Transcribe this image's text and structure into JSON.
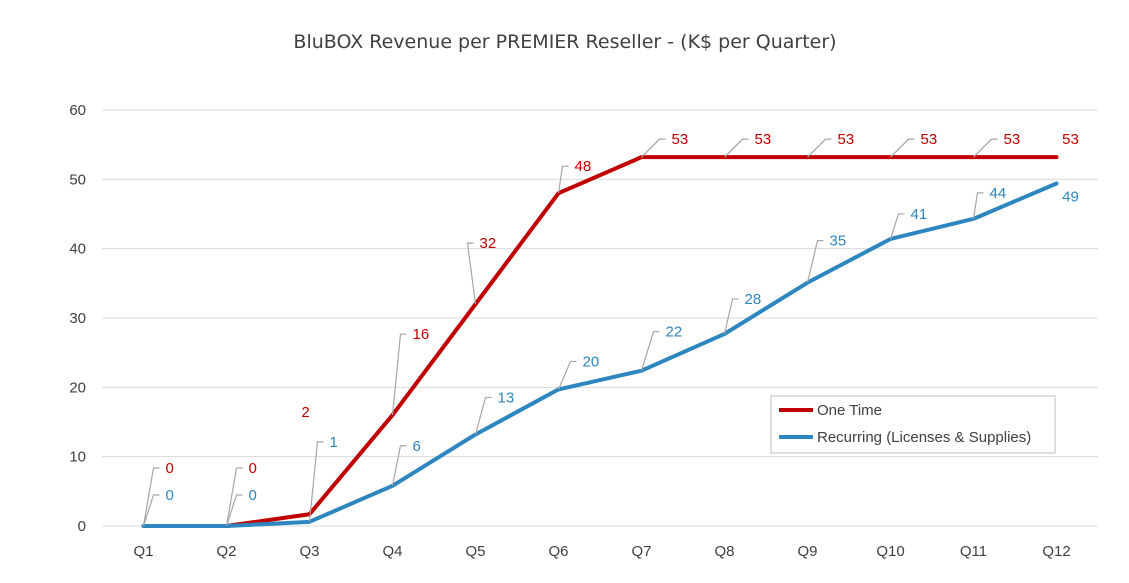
{
  "chart_data": {
    "type": "line",
    "title": "BluBOX Revenue per PREMIER Reseller - (K$ per Quarter)",
    "xlabel": "",
    "ylabel": "",
    "categories": [
      "Q1",
      "Q2",
      "Q3",
      "Q4",
      "Q5",
      "Q6",
      "Q7",
      "Q8",
      "Q9",
      "Q10",
      "Q11",
      "Q12"
    ],
    "ylim": [
      0,
      60
    ],
    "yticks": [
      0,
      10,
      20,
      30,
      40,
      50,
      60
    ],
    "grid": true,
    "legend_position": "bottom-right",
    "series": [
      {
        "name": "One Time",
        "color": "#C00000",
        "values": [
          0,
          0,
          1.7,
          16,
          32,
          48,
          53.2,
          53.2,
          53.2,
          53.2,
          53.2,
          53.2
        ],
        "labels": [
          "0",
          "0",
          "2",
          "16",
          "32",
          "48",
          "53",
          "53",
          "53",
          "53",
          "53",
          "53"
        ]
      },
      {
        "name": "Recurring (Licenses & Supplies)",
        "color": "#2E86C1",
        "values": [
          0,
          0,
          0.6,
          5.8,
          13.2,
          19.7,
          22.4,
          27.7,
          35.1,
          41.4,
          44.3,
          49.4
        ],
        "labels": [
          "0",
          "0",
          "1",
          "6",
          "13",
          "20",
          "22",
          "28",
          "35",
          "41",
          "44",
          "49"
        ]
      }
    ]
  }
}
